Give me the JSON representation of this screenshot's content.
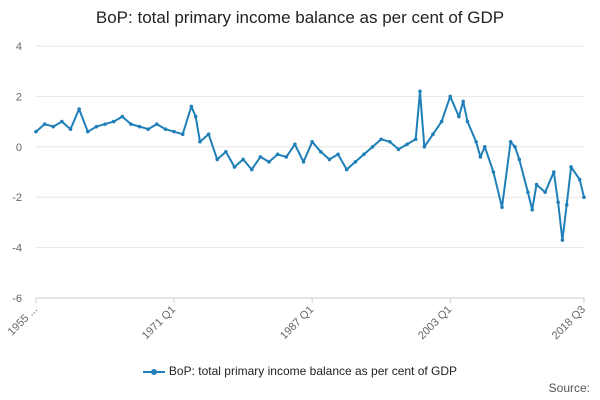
{
  "chart_data": {
    "type": "line",
    "title": "BoP: total primary income balance as per cent of GDP",
    "xlabel": "",
    "ylabel": "",
    "x_tick_labels": [
      "1955 ...",
      "1971 Q1",
      "1987 Q1",
      "2003 Q1",
      "2018 Q3"
    ],
    "x_tick_years": [
      1955.0,
      1971.0,
      1987.0,
      2003.0,
      2018.5
    ],
    "xlim": [
      1955.0,
      2018.5
    ],
    "ylim": [
      -6,
      4
    ],
    "y_ticks": [
      -6,
      -4,
      -2,
      0,
      2,
      4
    ],
    "grid": true,
    "legend_position": "bottom",
    "source_label": "Source:",
    "color": "#1f7fb8",
    "series": [
      {
        "name": "BoP: total primary income balance as per cent of GDP",
        "x": [
          1955.0,
          1956.0,
          1957.0,
          1958.0,
          1959.0,
          1960.0,
          1961.0,
          1962.0,
          1963.0,
          1964.0,
          1965.0,
          1966.0,
          1967.0,
          1968.0,
          1969.0,
          1970.0,
          1971.0,
          1972.0,
          1973.0,
          1973.5,
          1974.0,
          1975.0,
          1976.0,
          1977.0,
          1978.0,
          1979.0,
          1980.0,
          1981.0,
          1982.0,
          1983.0,
          1984.0,
          1985.0,
          1986.0,
          1987.0,
          1988.0,
          1989.0,
          1990.0,
          1991.0,
          1992.0,
          1993.0,
          1994.0,
          1995.0,
          1996.0,
          1997.0,
          1998.0,
          1999.0,
          1999.5,
          2000.0,
          2001.0,
          2002.0,
          2003.0,
          2004.0,
          2004.5,
          2005.0,
          2006.0,
          2006.5,
          2007.0,
          2008.0,
          2009.0,
          2010.0,
          2010.5,
          2011.0,
          2012.0,
          2012.5,
          2013.0,
          2014.0,
          2015.0,
          2015.5,
          2016.0,
          2016.5,
          2017.0,
          2018.0,
          2018.5
        ],
        "values": [
          0.6,
          0.9,
          0.8,
          1.0,
          0.7,
          1.5,
          0.6,
          0.8,
          0.9,
          1.0,
          1.2,
          0.9,
          0.8,
          0.7,
          0.9,
          0.7,
          0.6,
          0.5,
          1.6,
          1.2,
          0.2,
          0.5,
          -0.5,
          -0.2,
          -0.8,
          -0.5,
          -0.9,
          -0.4,
          -0.6,
          -0.3,
          -0.4,
          0.1,
          -0.6,
          0.2,
          -0.2,
          -0.5,
          -0.3,
          -0.9,
          -0.6,
          -0.3,
          0.0,
          0.3,
          0.2,
          -0.1,
          0.1,
          0.3,
          2.2,
          0.0,
          0.5,
          1.0,
          2.0,
          1.2,
          1.8,
          1.0,
          0.2,
          -0.4,
          0.0,
          -1.0,
          -2.4,
          0.2,
          0.0,
          -0.5,
          -1.8,
          -2.5,
          -1.5,
          -1.8,
          -1.0,
          -2.2,
          -3.7,
          -2.3,
          -0.8,
          -1.3,
          -2.0
        ]
      }
    ]
  }
}
